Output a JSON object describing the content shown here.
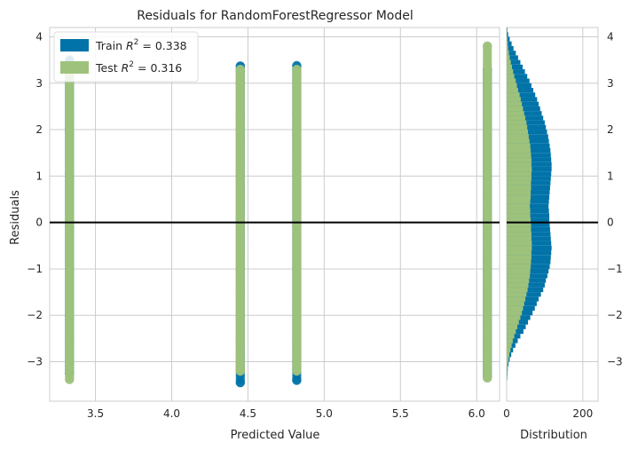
{
  "chart_data": {
    "type": "scatter",
    "title": "Residuals for RandomForestRegressor Model",
    "xlabel": "Predicted Value",
    "ylabel": "Residuals",
    "xlim": [
      3.2,
      6.15
    ],
    "ylim": [
      -3.85,
      4.2
    ],
    "xticks": [
      "3.5",
      "4.0",
      "4.5",
      "5.0",
      "5.5",
      "6.0"
    ],
    "yticks": [
      "−3",
      "−2",
      "−1",
      "0",
      "1",
      "2",
      "3",
      "4"
    ],
    "grid": true,
    "legend_position": "top-left",
    "zero_line": 0,
    "colors": {
      "train": "#0173a8",
      "test": "#9ec27b",
      "zero_line": "#000000",
      "grid": "#cccccc"
    },
    "series": [
      {
        "name": "Train R² = 0.338",
        "label_prefix": "Train",
        "r2_text": "= 0.338",
        "strips": [
          {
            "x": 3.33,
            "ymin": -3.25,
            "ymax": 3.5
          },
          {
            "x": 4.45,
            "ymin": -3.45,
            "ymax": 3.37
          },
          {
            "x": 4.82,
            "ymin": -3.4,
            "ymax": 3.38
          },
          {
            "x": 6.07,
            "ymin": -3.3,
            "ymax": 3.3
          }
        ]
      },
      {
        "name": "Test R² = 0.316",
        "label_prefix": "Test",
        "r2_text": "= 0.316",
        "strips": [
          {
            "x": 3.33,
            "ymin": -3.38,
            "ymax": 3.3
          },
          {
            "x": 4.45,
            "ymin": -3.2,
            "ymax": 3.3
          },
          {
            "x": 4.82,
            "ymin": -3.2,
            "ymax": 3.3
          },
          {
            "x": 6.07,
            "ymin": -3.35,
            "ymax": 3.8
          }
        ]
      }
    ],
    "distribution": {
      "xlabel": "Distribution",
      "xlim": [
        0,
        240
      ],
      "xticks": [
        "0",
        "200"
      ],
      "bin_width": 0.1,
      "bin_start": -3.4,
      "train_counts": [
        1,
        2,
        3,
        5,
        8,
        12,
        17,
        23,
        29,
        36,
        44,
        50,
        56,
        62,
        68,
        74,
        79,
        84,
        90,
        96,
        100,
        103,
        107,
        110,
        113,
        115,
        116,
        117,
        118,
        117,
        116,
        115,
        114,
        113,
        112,
        112,
        111,
        110,
        111,
        112,
        113,
        114,
        115,
        116,
        117,
        118,
        118,
        117,
        116,
        115,
        113,
        111,
        109,
        106,
        103,
        100,
        96,
        92,
        88,
        84,
        80,
        75,
        70,
        65,
        60,
        54,
        48,
        42,
        36,
        30,
        24,
        18,
        13,
        8,
        4,
        2
      ],
      "test_counts": [
        0,
        1,
        2,
        3,
        5,
        7,
        10,
        13,
        16,
        20,
        24,
        28,
        32,
        36,
        40,
        43,
        46,
        49,
        52,
        55,
        57,
        59,
        61,
        62,
        63,
        64,
        65,
        65,
        66,
        66,
        65,
        65,
        64,
        64,
        63,
        62,
        62,
        61,
        62,
        63,
        63,
        64,
        64,
        65,
        65,
        66,
        65,
        65,
        64,
        63,
        62,
        60,
        58,
        56,
        54,
        52,
        49,
        46,
        43,
        40,
        37,
        34,
        30,
        27,
        24,
        20,
        17,
        14,
        11,
        8,
        6,
        4,
        3,
        2,
        1,
        1
      ]
    }
  }
}
